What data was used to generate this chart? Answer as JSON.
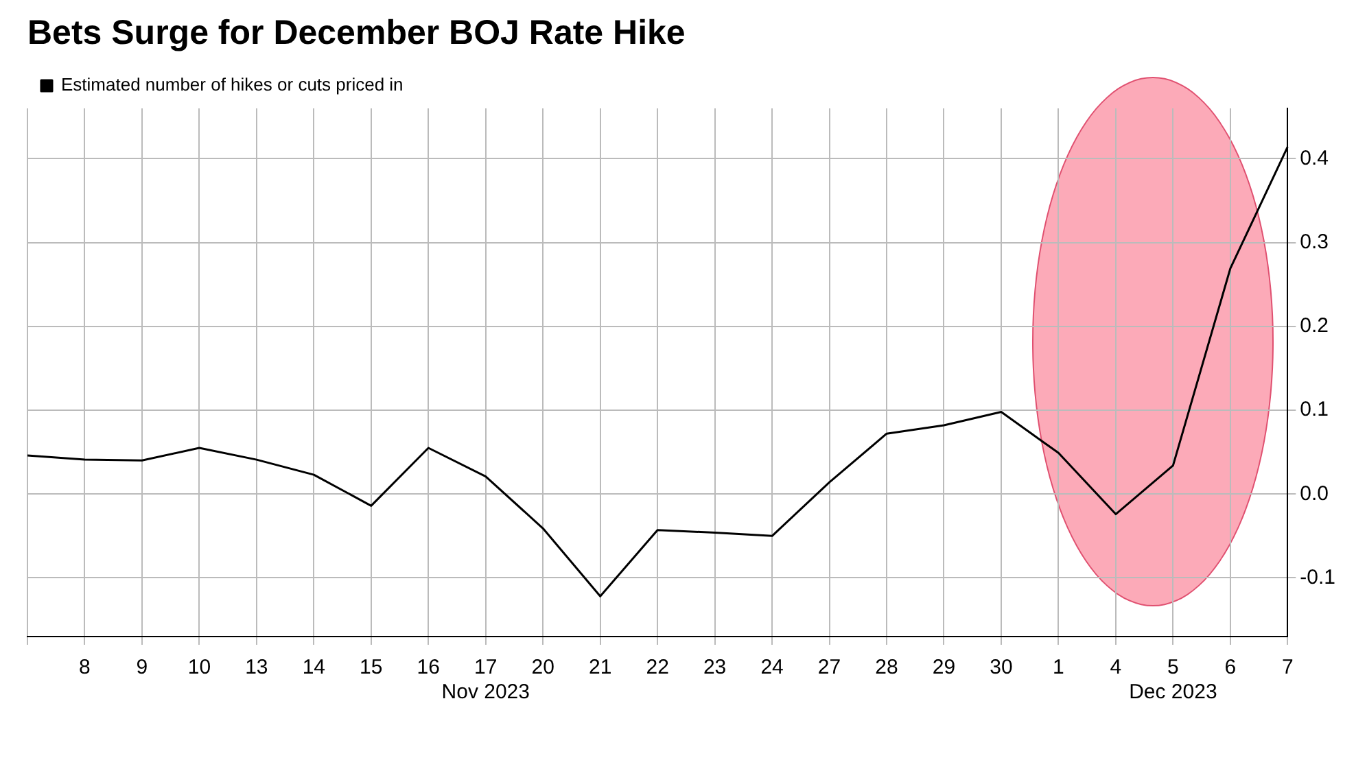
{
  "chart_data": {
    "type": "line",
    "title": "Bets Surge for December BOJ Rate Hike",
    "categories": [
      null,
      "8",
      "9",
      "10",
      "13",
      "14",
      "15",
      "16",
      "17\nNov 2023",
      "20",
      "21",
      "22",
      "23",
      "24",
      "27",
      "28",
      "29",
      "30",
      "1",
      "4",
      "5\nDec 2023",
      "6",
      "7"
    ],
    "series": [
      {
        "name": "Estimated number of hikes or cuts priced in",
        "color": "#000000",
        "values": [
          0.046,
          0.041,
          0.04,
          0.055,
          0.041,
          0.023,
          -0.014,
          0.055,
          0.021,
          -0.041,
          -0.122,
          -0.043,
          -0.046,
          -0.05,
          0.014,
          0.072,
          0.082,
          0.098,
          0.049,
          -0.024,
          0.034,
          0.269,
          0.414
        ]
      }
    ],
    "ylim": [
      -0.17,
      0.46
    ],
    "yticks": [
      {
        "value": -0.1,
        "label": "-0.1"
      },
      {
        "value": 0,
        "label": "0.0"
      },
      {
        "value": 0.1,
        "label": "0.1"
      },
      {
        "value": 0.2,
        "label": "0.2"
      },
      {
        "value": 0.3,
        "label": "0.3"
      },
      {
        "value": 0.4,
        "label": "0.4"
      }
    ],
    "grid": true,
    "legend": "top left",
    "marker": "none",
    "line_style": "solid"
  }
}
